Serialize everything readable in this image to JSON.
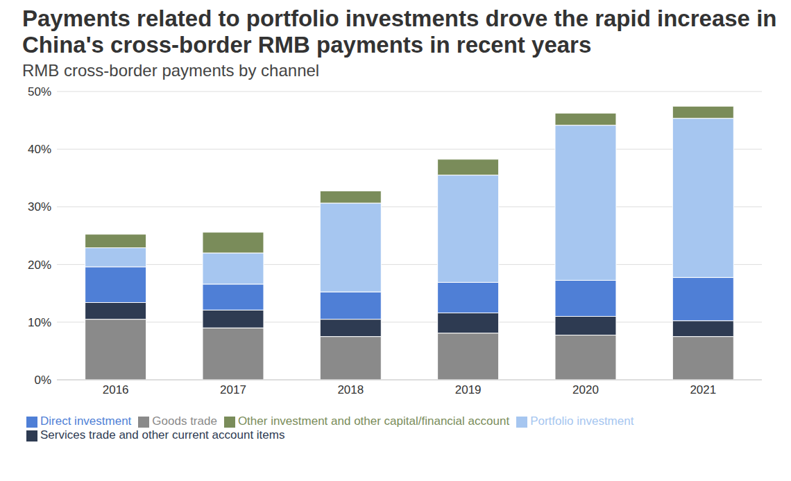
{
  "chart_data": {
    "type": "bar",
    "title": "Payments related to portfolio investments drove the rapid increase in China's cross-border RMB payments in recent years",
    "subtitle": "RMB cross-border payments by channel",
    "categories": [
      "2016",
      "2017",
      "2018",
      "2019",
      "2020",
      "2021"
    ],
    "series": [
      {
        "name": "Goods trade",
        "color": "#8a8a8a",
        "values": [
          10.5,
          9.0,
          7.5,
          8.1,
          7.75,
          7.5
        ]
      },
      {
        "name": "Services trade and other current account items",
        "color": "#2e3b52",
        "values": [
          2.9,
          3.1,
          3.0,
          3.5,
          3.25,
          2.75
        ]
      },
      {
        "name": "Direct investment",
        "color": "#4f7fd6",
        "values": [
          6.2,
          4.5,
          4.75,
          5.3,
          6.25,
          7.5
        ]
      },
      {
        "name": "Portfolio investment",
        "color": "#a6c6f0",
        "values": [
          3.3,
          5.4,
          15.4,
          18.6,
          26.9,
          27.6
        ]
      },
      {
        "name": "Other investment and other capital/financial account",
        "color": "#7a8c5a",
        "values": [
          2.35,
          3.6,
          2.1,
          2.75,
          2.1,
          2.1
        ]
      }
    ],
    "ylim": [
      0,
      50
    ],
    "yticks": [
      {
        "value": 0,
        "label": "0%"
      },
      {
        "value": 10,
        "label": "10%"
      },
      {
        "value": 20,
        "label": "20%"
      },
      {
        "value": 30,
        "label": "30%"
      },
      {
        "value": 40,
        "label": "40%"
      },
      {
        "value": 50,
        "label": "50%"
      }
    ],
    "stacked": true,
    "grid": true,
    "legend": "bottom"
  }
}
